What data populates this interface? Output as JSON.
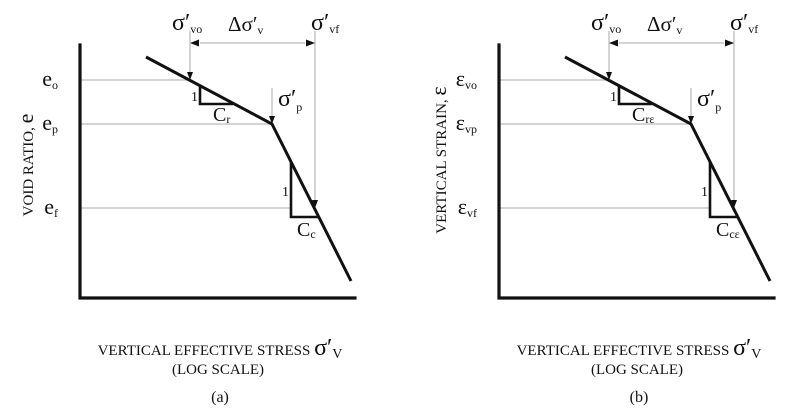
{
  "figure": {
    "panels": [
      {
        "id": "a",
        "caption": "(a)",
        "y_axis_label": "VOID RATIO, ",
        "y_axis_symbol": "e",
        "x_axis_label_line1": "VERTICAL EFFECTIVE STRESS ",
        "x_axis_symbol": "σ′",
        "x_axis_symbol_sub": "V",
        "x_axis_label_line2": "(LOG SCALE)",
        "y_ticks": [
          {
            "main": "e",
            "sub": "o"
          },
          {
            "main": "e",
            "sub": "p"
          },
          {
            "main": "e",
            "sub": "f"
          }
        ],
        "top_labels": [
          {
            "main": "σ′",
            "sub": "vo"
          },
          {
            "main": "Δσ′",
            "sub": "v"
          },
          {
            "main": "σ′",
            "sub": "vf"
          }
        ],
        "preconsolidation_label": {
          "main": "σ′",
          "sub": "p"
        },
        "recompression_slope": {
          "rise": "1",
          "run_main": "C",
          "run_sub": "r"
        },
        "compression_slope": {
          "rise": "1",
          "run_main": "C",
          "run_sub": "c"
        }
      },
      {
        "id": "b",
        "caption": "(b)",
        "y_axis_label": "VERTICAL STRAIN, ",
        "y_axis_symbol": "ε",
        "x_axis_label_line1": "VERTICAL EFFECTIVE STRESS ",
        "x_axis_symbol": "σ′",
        "x_axis_symbol_sub": "V",
        "x_axis_label_line2": "(LOG SCALE)",
        "y_ticks": [
          {
            "main": "ε",
            "sub": "vo"
          },
          {
            "main": "ε",
            "sub": "vp"
          },
          {
            "main": "ε",
            "sub": "vf"
          }
        ],
        "top_labels": [
          {
            "main": "σ′",
            "sub": "vo"
          },
          {
            "main": "Δσ′",
            "sub": "v"
          },
          {
            "main": "σ′",
            "sub": "vf"
          }
        ],
        "preconsolidation_label": {
          "main": "σ′",
          "sub": "p"
        },
        "recompression_slope": {
          "rise": "1",
          "run_main": "C",
          "run_sub": "rε"
        },
        "compression_slope": {
          "rise": "1",
          "run_main": "C",
          "run_sub": "cε"
        }
      }
    ]
  }
}
